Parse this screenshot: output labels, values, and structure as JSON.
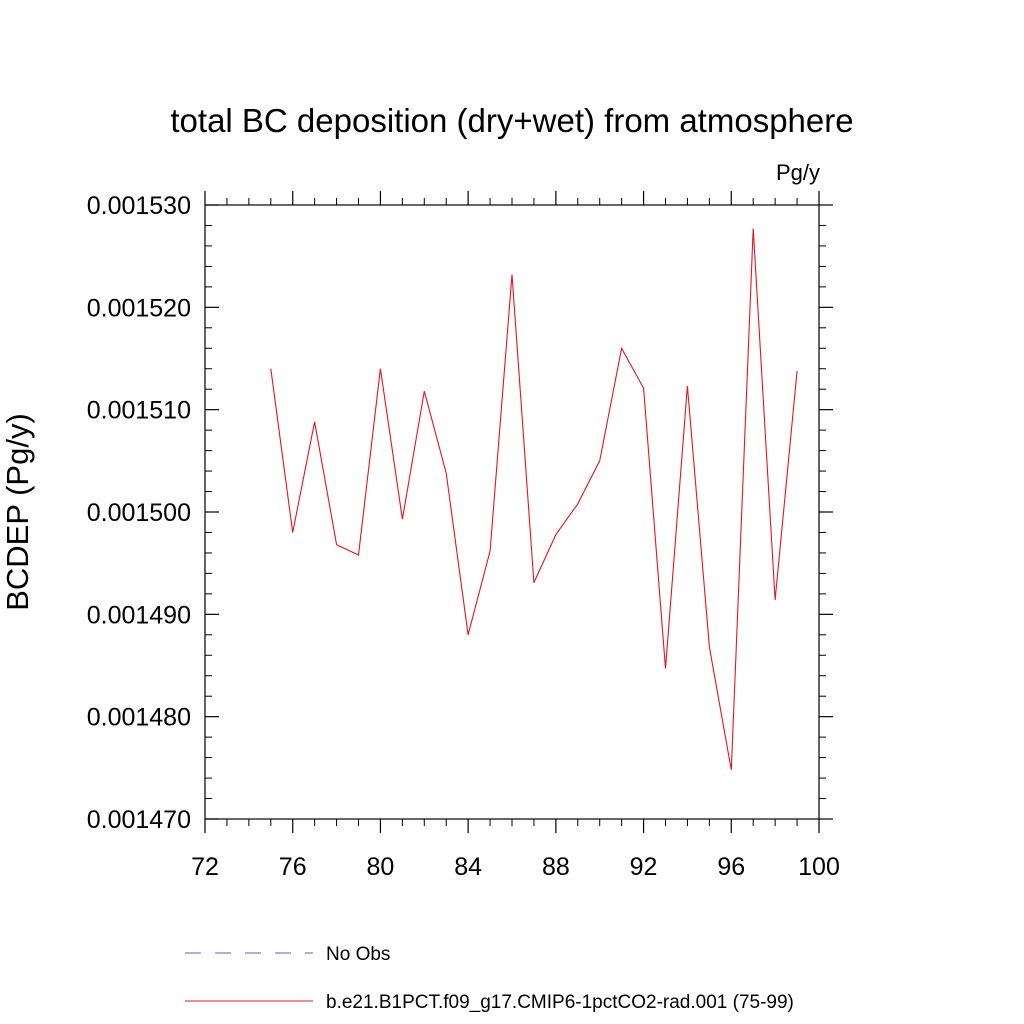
{
  "chart_data": {
    "type": "line",
    "title": "total BC deposition (dry+wet) from atmosphere",
    "units_label": "Pg/y",
    "ylabel": "BCDEP  (Pg/y)",
    "xlabel": "",
    "xlim": [
      72,
      100
    ],
    "ylim": [
      0.00147,
      0.00153
    ],
    "x_ticks": [
      72,
      76,
      80,
      84,
      88,
      92,
      96,
      100
    ],
    "x_tick_labels": [
      "72",
      "76",
      "80",
      "84",
      "88",
      "92",
      "96",
      "100"
    ],
    "y_ticks": [
      0.00147,
      0.00148,
      0.00149,
      0.0015,
      0.00151,
      0.00152,
      0.00153
    ],
    "y_tick_labels": [
      "0.001470",
      "0.001480",
      "0.001490",
      "0.001500",
      "0.001510",
      "0.001520",
      "0.001530"
    ],
    "grid": false,
    "legend_position": "bottom",
    "series": [
      {
        "name": "No Obs",
        "color": "#6a5acd",
        "dash": "dashed",
        "x": [],
        "y": []
      },
      {
        "name": "b.e21.B1PCT.f09_g17.CMIP6-1pctCO2-rad.001 (75-99)",
        "color": "#e8141c",
        "dash": "solid",
        "x": [
          75,
          76,
          77,
          78,
          79,
          80,
          81,
          82,
          83,
          84,
          85,
          86,
          87,
          88,
          89,
          90,
          91,
          92,
          93,
          94,
          95,
          96,
          97,
          98,
          99
        ],
        "y": [
          0.001514,
          0.001498,
          0.0015088,
          0.0014968,
          0.0014958,
          0.001514,
          0.0014993,
          0.0015118,
          0.0015038,
          0.001488,
          0.0014962,
          0.0015232,
          0.0014931,
          0.0014978,
          0.0015008,
          0.001505,
          0.001516,
          0.0015121,
          0.0014847,
          0.0015123,
          0.0014868,
          0.0014748,
          0.0015277,
          0.0014914,
          0.0015138
        ]
      }
    ]
  }
}
